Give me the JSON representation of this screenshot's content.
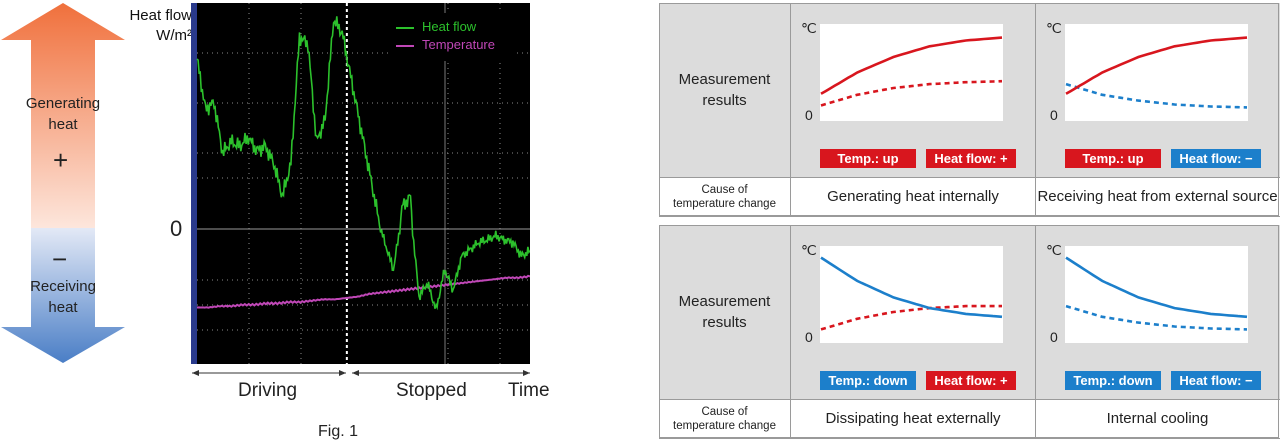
{
  "left_arrow": {
    "top_label": "Generating\nheat",
    "plus_sign": "+",
    "minus_sign": "−",
    "bottom_label": "Receiving\nheat"
  },
  "chart_data": {
    "type": "line",
    "ylabel": "Heat flow\nW/m²",
    "zero_label": "0",
    "x_phases": [
      "Driving",
      "Stopped"
    ],
    "xlabel": "Time",
    "legend": [
      {
        "name": "Heat flow",
        "color": "#2cc12c"
      },
      {
        "name": "Temperature",
        "color": "#c047b7"
      }
    ],
    "caption": "Fig. 1",
    "heat_flow_values": [
      0.78,
      0.55,
      0.58,
      0.35,
      0.4,
      0.38,
      0.42,
      0.36,
      0.38,
      0.3,
      0.15,
      0.3,
      0.88,
      0.85,
      0.4,
      0.5,
      0.96,
      0.9,
      0.7,
      0.5,
      0.3,
      0.1,
      -0.1,
      -0.3,
      0.1,
      0.15,
      -0.5,
      -0.4,
      -0.6,
      -0.3,
      -0.45,
      -0.2,
      -0.15,
      -0.1,
      -0.08,
      -0.05,
      -0.08,
      -0.1,
      -0.2,
      -0.16
    ],
    "temperature_values": [
      -0.58,
      -0.58,
      -0.57,
      -0.57,
      -0.56,
      -0.56,
      -0.55,
      -0.55,
      -0.54,
      -0.54,
      -0.53,
      -0.52,
      -0.52,
      -0.51,
      -0.5,
      -0.48,
      -0.47,
      -0.46,
      -0.45,
      -0.44,
      -0.43,
      -0.42,
      -0.41,
      -0.4,
      -0.39,
      -0.38,
      -0.37,
      -0.36,
      -0.36,
      -0.35
    ],
    "stop_fraction": 0.45,
    "ylim": [
      -0.85,
      1.0
    ]
  },
  "panels": [
    {
      "row_label": "Measurement\nresults",
      "cause_label": "Cause of\ntemperature change",
      "cells": [
        {
          "temp_badge": "Temp.: up",
          "temp_color": "#d8161e",
          "flow_badge": "Heat flow: +",
          "flow_color": "#d8161e",
          "cause": "Generating heat internally",
          "solid_color": "#d8161e",
          "solid": [
            0.28,
            0.5,
            0.66,
            0.77,
            0.83,
            0.86
          ],
          "dashed_color": "#d8161e",
          "dashed": [
            0.16,
            0.27,
            0.34,
            0.38,
            0.4,
            0.41
          ]
        },
        {
          "temp_badge": "Temp.: up",
          "temp_color": "#d8161e",
          "flow_badge": "Heat flow: −",
          "flow_color": "#1c7fcb",
          "cause": "Receiving heat from external source",
          "solid_color": "#d8161e",
          "solid": [
            0.28,
            0.5,
            0.66,
            0.77,
            0.83,
            0.86
          ],
          "dashed_color": "#1c7fcb",
          "dashed": [
            0.38,
            0.27,
            0.21,
            0.17,
            0.15,
            0.14
          ]
        }
      ]
    },
    {
      "row_label": "Measurement\nresults",
      "cause_label": "Cause of\ntemperature change",
      "cells": [
        {
          "temp_badge": "Temp.: down",
          "temp_color": "#1c7fcb",
          "flow_badge": "Heat flow: +",
          "flow_color": "#d8161e",
          "cause": "Dissipating heat externally",
          "solid_color": "#1c7fcb",
          "solid": [
            0.88,
            0.64,
            0.47,
            0.36,
            0.3,
            0.27
          ],
          "dashed_color": "#d8161e",
          "dashed": [
            0.14,
            0.25,
            0.32,
            0.36,
            0.38,
            0.38
          ]
        },
        {
          "temp_badge": "Temp.: down",
          "temp_color": "#1c7fcb",
          "flow_badge": "Heat flow: −",
          "flow_color": "#1c7fcb",
          "cause": "Internal cooling",
          "solid_color": "#1c7fcb",
          "solid": [
            0.88,
            0.64,
            0.47,
            0.36,
            0.3,
            0.27
          ],
          "dashed_color": "#1c7fcb",
          "dashed": [
            0.38,
            0.27,
            0.21,
            0.17,
            0.15,
            0.14
          ]
        }
      ]
    }
  ],
  "axis_unit": "℃",
  "axis_zero": "0"
}
